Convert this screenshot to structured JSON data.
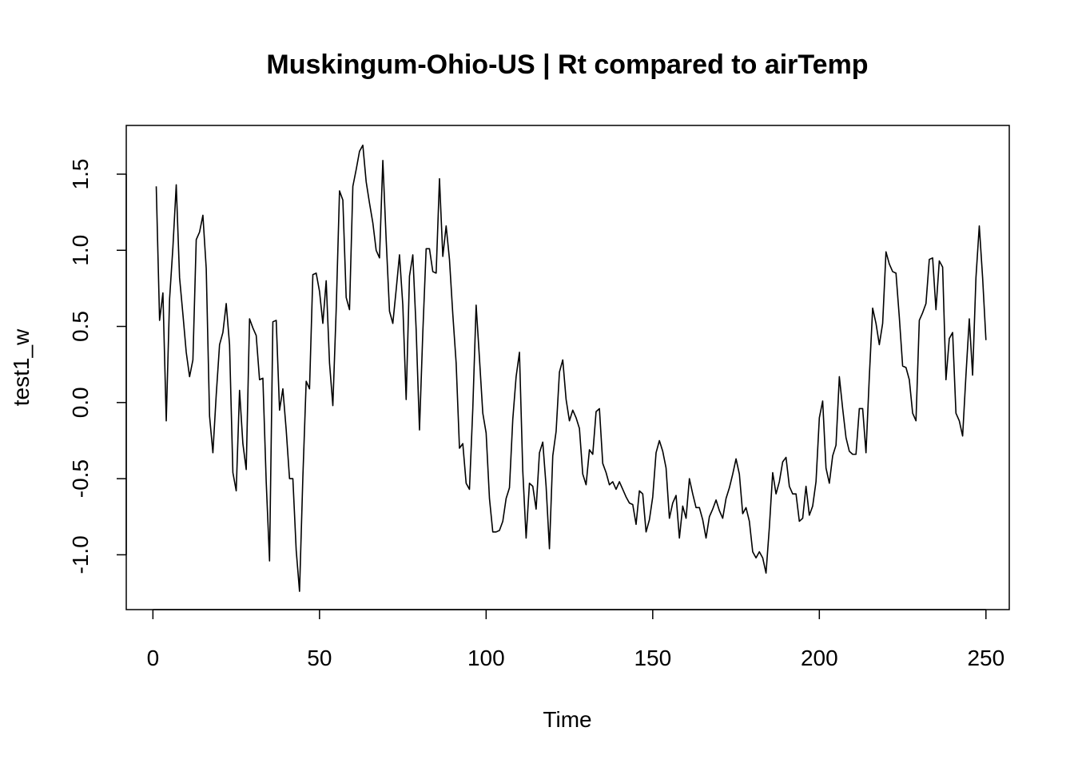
{
  "chart_data": {
    "type": "line",
    "title": "Muskingum-Ohio-US | Rt compared to airTemp",
    "xlabel": "Time",
    "ylabel": "test1_w",
    "xlim": [
      -8,
      257
    ],
    "ylim": [
      -1.36,
      1.82
    ],
    "xticks": [
      0,
      50,
      100,
      150,
      200,
      250
    ],
    "yticks": [
      -1.0,
      -0.5,
      0.0,
      0.5,
      1.0,
      1.5
    ],
    "xtick_labels": [
      "0",
      "50",
      "100",
      "150",
      "200",
      "250"
    ],
    "ytick_labels": [
      "-1.0",
      "-0.5",
      "0.0",
      "0.5",
      "1.0",
      "1.5"
    ],
    "grid": false,
    "legend": "none",
    "line_color": "#000000",
    "series": [
      {
        "x_start": 1,
        "values": [
          1.42,
          0.54,
          0.72,
          -0.12,
          0.68,
          1.02,
          1.43,
          0.82,
          0.58,
          0.33,
          0.17,
          0.28,
          1.07,
          1.12,
          1.23,
          0.88,
          -0.09,
          -0.33,
          0.05,
          0.38,
          0.46,
          0.65,
          0.38,
          -0.46,
          -0.58,
          0.08,
          -0.27,
          -0.44,
          0.55,
          0.49,
          0.44,
          0.15,
          0.16,
          -0.52,
          -1.04,
          0.53,
          0.54,
          -0.05,
          0.09,
          -0.18,
          -0.5,
          -0.5,
          -0.97,
          -1.24,
          -0.49,
          0.14,
          0.09,
          0.84,
          0.85,
          0.73,
          0.52,
          0.8,
          0.26,
          -0.02,
          0.61,
          1.39,
          1.33,
          0.69,
          0.61,
          1.42,
          1.53,
          1.65,
          1.69,
          1.45,
          1.31,
          1.18,
          1.0,
          0.95,
          1.59,
          1.07,
          0.6,
          0.52,
          0.74,
          0.97,
          0.64,
          0.02,
          0.83,
          0.97,
          0.48,
          -0.18,
          0.46,
          1.01,
          1.01,
          0.86,
          0.85,
          1.47,
          0.96,
          1.16,
          0.94,
          0.58,
          0.26,
          -0.3,
          -0.27,
          -0.53,
          -0.57,
          -0.04,
          0.64,
          0.29,
          -0.07,
          -0.2,
          -0.63,
          -0.85,
          -0.85,
          -0.84,
          -0.78,
          -0.63,
          -0.56,
          -0.11,
          0.17,
          0.33,
          -0.45,
          -0.89,
          -0.53,
          -0.55,
          -0.7,
          -0.33,
          -0.26,
          -0.55,
          -0.96,
          -0.35,
          -0.19,
          0.2,
          0.28,
          0.02,
          -0.12,
          -0.05,
          -0.1,
          -0.17,
          -0.47,
          -0.54,
          -0.31,
          -0.34,
          -0.06,
          -0.04,
          -0.4,
          -0.46,
          -0.54,
          -0.52,
          -0.57,
          -0.52,
          -0.57,
          -0.62,
          -0.66,
          -0.67,
          -0.8,
          -0.58,
          -0.6,
          -0.85,
          -0.77,
          -0.62,
          -0.33,
          -0.25,
          -0.32,
          -0.43,
          -0.76,
          -0.66,
          -0.61,
          -0.89,
          -0.68,
          -0.76,
          -0.5,
          -0.6,
          -0.69,
          -0.69,
          -0.77,
          -0.89,
          -0.75,
          -0.7,
          -0.64,
          -0.71,
          -0.76,
          -0.63,
          -0.56,
          -0.47,
          -0.37,
          -0.47,
          -0.73,
          -0.69,
          -0.78,
          -0.98,
          -1.02,
          -0.98,
          -1.02,
          -1.12,
          -0.82,
          -0.46,
          -0.6,
          -0.52,
          -0.39,
          -0.36,
          -0.55,
          -0.6,
          -0.6,
          -0.78,
          -0.76,
          -0.55,
          -0.74,
          -0.68,
          -0.52,
          -0.1,
          0.01,
          -0.43,
          -0.53,
          -0.35,
          -0.28,
          0.17,
          -0.04,
          -0.23,
          -0.32,
          -0.34,
          -0.34,
          -0.04,
          -0.04,
          -0.33,
          0.17,
          0.62,
          0.52,
          0.38,
          0.52,
          0.99,
          0.91,
          0.86,
          0.85,
          0.56,
          0.24,
          0.23,
          0.15,
          -0.07,
          -0.12,
          0.54,
          0.59,
          0.65,
          0.94,
          0.95,
          0.61,
          0.93,
          0.89,
          0.15,
          0.42,
          0.46,
          -0.07,
          -0.12,
          -0.22,
          0.18,
          0.55,
          0.18,
          0.82,
          1.16,
          0.82,
          0.41
        ]
      }
    ]
  }
}
